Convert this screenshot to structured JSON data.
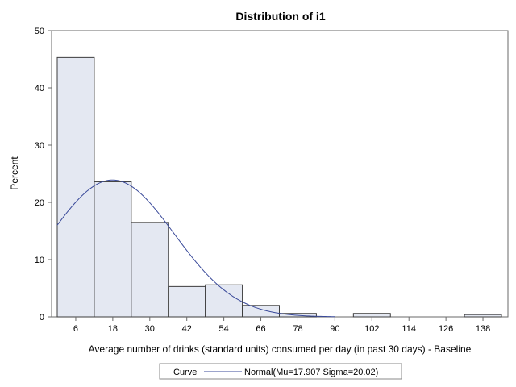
{
  "chart_data": {
    "type": "bar",
    "title": "Distribution of i1",
    "xlabel": "Average number of drinks (standard units) consumed per day (in past 30 days) - Baseline",
    "ylabel": "Percent",
    "ylim": [
      0,
      50
    ],
    "yticks": [
      0,
      10,
      20,
      30,
      40,
      50
    ],
    "xlim": [
      0,
      144
    ],
    "xticks": [
      6,
      18,
      30,
      42,
      54,
      66,
      78,
      90,
      102,
      114,
      126,
      138
    ],
    "bin_width": 12,
    "categories": [
      "6",
      "18",
      "30",
      "42",
      "54",
      "66",
      "78",
      "90",
      "102",
      "114",
      "126",
      "138"
    ],
    "values": [
      45.3,
      23.6,
      16.5,
      5.3,
      5.6,
      2.0,
      0.6,
      0,
      0.6,
      0,
      0,
      0.4
    ],
    "curve": {
      "type": "normal",
      "mu": 17.907,
      "sigma": 20.02,
      "label": "Normal(Mu=17.907 Sigma=20.02)"
    },
    "legend": {
      "title": "Curve",
      "position": "bottom"
    },
    "grid": false,
    "colors": {
      "bar_fill": "#e4e8f2",
      "bar_stroke": "#3c3c3c",
      "curve": "#3a4a9a",
      "frame": "#6a6a6a"
    }
  }
}
